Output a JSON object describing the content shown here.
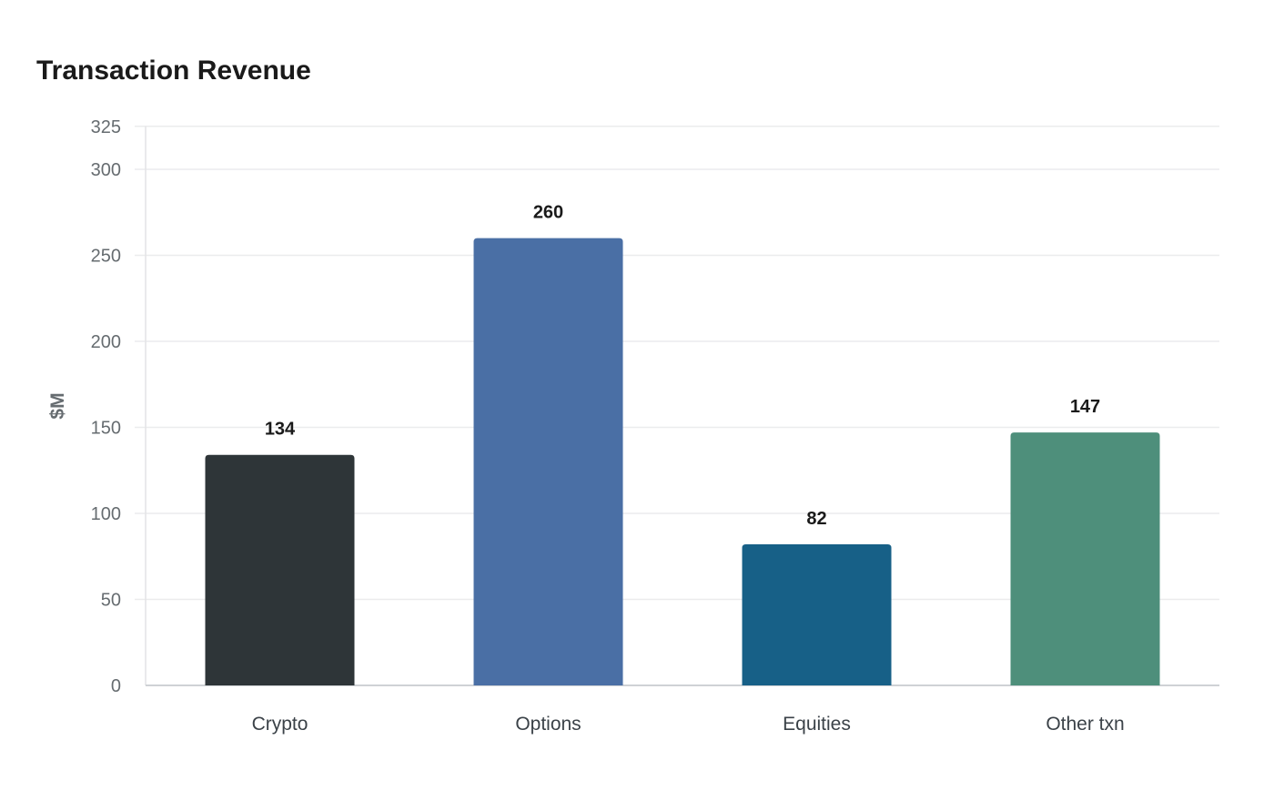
{
  "chart_data": {
    "type": "bar",
    "title": "Transaction Revenue",
    "xlabel": "",
    "ylabel": "$M",
    "categories": [
      "Crypto",
      "Options",
      "Equities",
      "Other txn"
    ],
    "values": [
      134,
      260,
      82,
      147
    ],
    "colors": [
      "#2e3538",
      "#4a6fa5",
      "#176087",
      "#4e8f7b"
    ],
    "ylim": [
      0,
      325
    ],
    "yticks": [
      0,
      50,
      100,
      150,
      200,
      250,
      300,
      325
    ],
    "grid": true,
    "data_labels": true
  }
}
